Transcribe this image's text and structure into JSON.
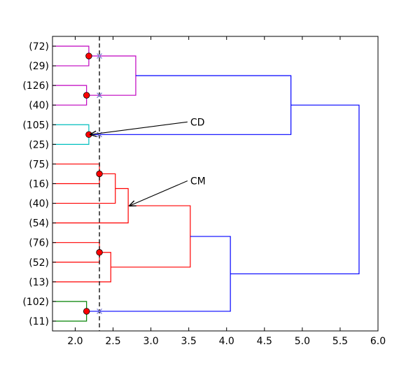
{
  "chart_data": {
    "type": "dendrogram",
    "orientation": "horizontal",
    "title": "",
    "xlabel": "",
    "ylabel": "",
    "xlim": [
      1.7,
      6.0
    ],
    "xticks": [
      "2.0",
      "2.5",
      "3.0",
      "3.5",
      "4.0",
      "4.5",
      "5.0",
      "5.5",
      "6.0"
    ],
    "xtick_values": [
      2.0,
      2.5,
      3.0,
      3.5,
      4.0,
      4.5,
      5.0,
      5.5,
      6.0
    ],
    "leaves": [
      "(72)",
      "(29)",
      "(126)",
      "(40)",
      "(105)",
      "(25)",
      "(75)",
      "(16)",
      "(40)",
      "(54)",
      "(76)",
      "(52)",
      "(13)",
      "(102)",
      "(11)"
    ],
    "cut_line": {
      "x": 2.32,
      "style": "dashed"
    },
    "colors": {
      "magenta": "#bf00bf",
      "cyan": "#00bfbf",
      "red": "#ff0000",
      "green": "#008000",
      "blue": "#0000ff",
      "dot": "#ff0000"
    },
    "merges": [
      {
        "id": "m1",
        "left": 0,
        "right": 1,
        "height": 2.18,
        "color": "magenta"
      },
      {
        "id": "m2",
        "left": 2,
        "right": 3,
        "height": 2.15,
        "color": "magenta"
      },
      {
        "id": "m3",
        "left": "m1",
        "right": "m2",
        "height": 2.8,
        "color": "magenta"
      },
      {
        "id": "m4",
        "left": 4,
        "right": 5,
        "height": 2.18,
        "color": "cyan"
      },
      {
        "id": "m5",
        "left": "m3",
        "right": "m4",
        "height": 4.85,
        "color": "blue"
      },
      {
        "id": "m6",
        "left": 6,
        "right": 7,
        "height": 2.32,
        "color": "red"
      },
      {
        "id": "m7",
        "left": "m6",
        "right": 8,
        "height": 2.53,
        "color": "red"
      },
      {
        "id": "m8",
        "left": "m7",
        "right": 9,
        "height": 2.7,
        "color": "red"
      },
      {
        "id": "m9",
        "left": 10,
        "right": 11,
        "height": 2.32,
        "color": "red"
      },
      {
        "id": "m10",
        "left": "m9",
        "right": 12,
        "height": 2.47,
        "color": "red"
      },
      {
        "id": "m11",
        "left": "m8",
        "right": "m10",
        "height": 3.52,
        "color": "red"
      },
      {
        "id": "m12",
        "left": 13,
        "right": 14,
        "height": 2.15,
        "color": "green"
      },
      {
        "id": "m13",
        "left": "m11",
        "right": "m12",
        "height": 4.05,
        "color": "blue"
      },
      {
        "id": "m14",
        "left": "m5",
        "right": "m13",
        "height": 5.75,
        "color": "blue"
      }
    ],
    "dot_markers": [
      {
        "x": 2.18,
        "leaves": [
          0,
          1
        ]
      },
      {
        "x": 2.15,
        "leaves": [
          2,
          3
        ]
      },
      {
        "x": 2.18,
        "leaves": [
          4,
          5
        ]
      },
      {
        "x": 2.32,
        "leaves": [
          6,
          7
        ]
      },
      {
        "x": 2.32,
        "leaves": [
          10,
          11
        ]
      },
      {
        "x": 2.15,
        "leaves": [
          13,
          14
        ]
      }
    ],
    "x_markers": [
      {
        "x": 2.32,
        "leaves": [
          0,
          1
        ]
      },
      {
        "x": 2.32,
        "leaves": [
          2,
          3
        ]
      },
      {
        "x": 2.32,
        "leaves": [
          4,
          5
        ]
      },
      {
        "x": 2.32,
        "leaves": [
          13,
          14
        ]
      }
    ],
    "annotations": [
      {
        "text": "CD",
        "text_x": 3.52,
        "text_leaf": 4,
        "arrow_to_x": 2.18,
        "arrow_to_leaves": [
          4,
          5
        ]
      },
      {
        "text": "CM",
        "text_x": 3.52,
        "text_leaf": 7,
        "arrow_to_x": 2.7,
        "arrow_to_node": "m8"
      }
    ]
  }
}
